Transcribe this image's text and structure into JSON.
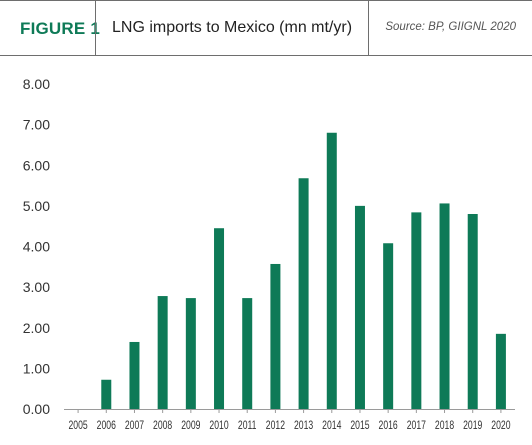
{
  "header": {
    "figure_label": "FIGURE 1",
    "title": "LNG imports to Mexico (mn mt/yr)",
    "source": "Source: BP, GIIGNL 2020"
  },
  "colors": {
    "bar": "#0e7a57",
    "accent": "#0e7a57",
    "axis": "#9a9a9a",
    "rule": "#6e6e6e"
  },
  "chart_data": {
    "type": "bar",
    "title": "LNG imports to Mexico (mn mt/yr)",
    "xlabel": "",
    "ylabel": "",
    "categories": [
      "2005",
      "2006",
      "2007",
      "2008",
      "2009",
      "2010",
      "2011",
      "2012",
      "2013",
      "2014",
      "2015",
      "2016",
      "2017",
      "2018",
      "2019",
      "2020"
    ],
    "values": [
      0,
      0.72,
      1.65,
      2.78,
      2.73,
      4.45,
      2.73,
      3.57,
      5.68,
      6.8,
      5.0,
      4.08,
      4.84,
      5.06,
      4.8,
      1.85
    ],
    "ylim": [
      0,
      8
    ],
    "yticks": [
      "0.00",
      "1.00",
      "2.00",
      "3.00",
      "4.00",
      "5.00",
      "6.00",
      "7.00",
      "8.00"
    ],
    "grid": false,
    "legend": "none"
  }
}
